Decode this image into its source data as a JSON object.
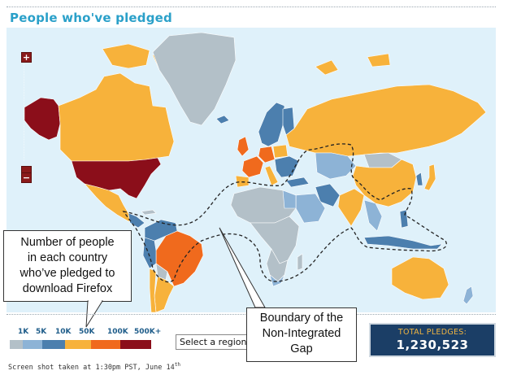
{
  "title": "People who've pledged",
  "map": {
    "zoom_in_label": "+",
    "zoom_out_label": "−",
    "colors": {
      "ocean": "#dff1fa",
      "no_data": "#b3c0c8",
      "tier_1k": "#b3c0c8",
      "tier_5k": "#8db3d6",
      "tier_10k": "#4c7fae",
      "tier_50k": "#f7b23b",
      "tier_100k": "#f06a1d",
      "tier_500k": "#8b0e1a",
      "gap_boundary": "#222222"
    }
  },
  "callouts": {
    "legend_note": [
      "Number of people",
      "in each country",
      "who’ve pledged to",
      "download Firefox"
    ],
    "gap_note": [
      "Boundary of the",
      "Non-Integrated",
      "Gap"
    ]
  },
  "legend": {
    "labels": [
      "1K",
      "5K",
      "10K",
      "50K",
      "100K",
      "500K+"
    ]
  },
  "region_select": {
    "value": "Select a region"
  },
  "totals": {
    "label": "TOTAL PLEDGES:",
    "value": "1,230,523"
  },
  "footer": {
    "prefix": "Screen shot taken at 1:30pm PST, June 14",
    "suffix": "th"
  }
}
